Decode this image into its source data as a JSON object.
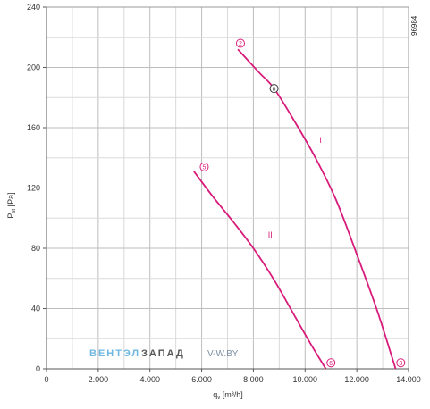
{
  "chart_data": {
    "type": "line",
    "xlabel": "q",
    "xlabel_sub": "v",
    "xlabel_unit": " [m³/h]",
    "ylabel": "P",
    "ylabel_sub": "st",
    "ylabel_unit": " [Pa]",
    "xlim": [
      0,
      14000
    ],
    "ylim": [
      0,
      240
    ],
    "x_ticks": [
      0,
      2000,
      4000,
      6000,
      8000,
      10000,
      12000,
      14000
    ],
    "x_tick_labels": [
      "0",
      "2.000",
      "4.000",
      "6.000",
      "8.000",
      "10.000",
      "12.000",
      "14.000"
    ],
    "y_ticks": [
      0,
      40,
      80,
      120,
      160,
      200,
      240
    ],
    "y_tick_labels": [
      "0",
      "40",
      "80",
      "120",
      "160",
      "200",
      "240"
    ],
    "grid": true,
    "line_color": "#d81b7a",
    "series": [
      {
        "name": "I",
        "x": [
          7400,
          8200,
          8800,
          9600,
          10400,
          11200,
          12000,
          12800,
          13500
        ],
        "y": [
          212,
          197,
          186,
          164,
          140,
          112,
          76,
          38,
          0
        ]
      },
      {
        "name": "II",
        "x": [
          5700,
          6400,
          7200,
          8000,
          8800,
          9600,
          10200,
          10800
        ],
        "y": [
          131,
          115,
          98,
          80,
          59,
          35,
          17,
          0
        ]
      }
    ],
    "point_markers": [
      {
        "label": "2",
        "x": 7500,
        "y": 216
      },
      {
        "label": "n",
        "x": 8800,
        "y": 186
      },
      {
        "label": "3",
        "x": 13700,
        "y": 4
      },
      {
        "label": "5",
        "x": 6100,
        "y": 134
      },
      {
        "label": "6",
        "x": 11000,
        "y": 4
      }
    ],
    "curve_labels": [
      {
        "label": "I",
        "x": 10600,
        "y": 150
      },
      {
        "label": "II",
        "x": 8650,
        "y": 87
      }
    ],
    "code_label": "96984",
    "watermark": {
      "part1": "ВЕНТЭЛ",
      "part2": "ЗАПАД",
      "part3": "V-W.BY",
      "color1": "#6fb7e0",
      "color2": "#555555",
      "color3": "#7a8ea0"
    }
  }
}
